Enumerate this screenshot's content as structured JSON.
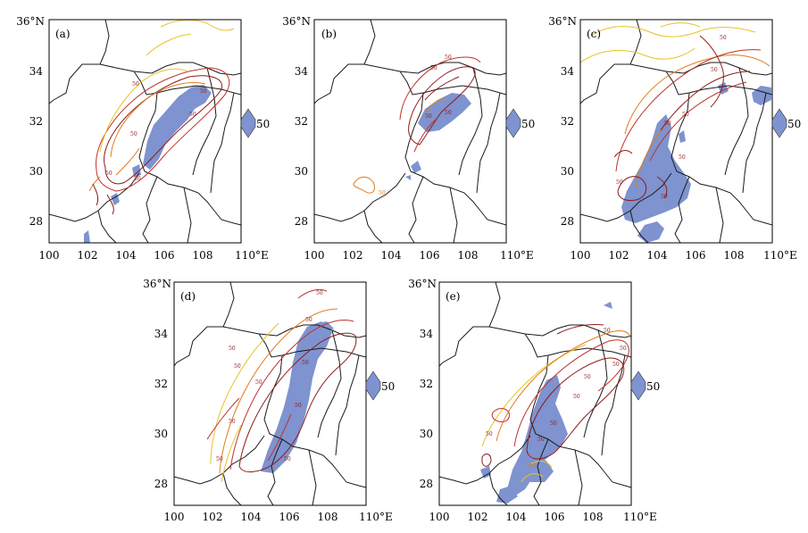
{
  "figure": {
    "panels": [
      {
        "id": "a",
        "label": "(a)"
      },
      {
        "id": "b",
        "label": "(b)"
      },
      {
        "id": "c",
        "label": "(c)"
      },
      {
        "id": "d",
        "label": "(d)"
      },
      {
        "id": "e",
        "label": "(e)"
      }
    ],
    "axes": {
      "lon_ticks": [
        "100",
        "102",
        "104",
        "106",
        "108",
        "110°E"
      ],
      "lat_ticks": [
        "28",
        "30",
        "32",
        "34",
        "36°N"
      ],
      "lon_range": [
        100,
        110
      ],
      "lat_range": [
        27,
        36
      ]
    },
    "legend": {
      "value_label": "50",
      "fill_color": "#7e93cf"
    },
    "contour_label": "50",
    "colors": {
      "shade": "#7e93cf",
      "contour_dark": "#8e1a1a",
      "contour_red": "#c0322a",
      "contour_orange": "#e07b1c",
      "contour_yellow": "#e8c22c",
      "boundary": "#1a1a1a"
    }
  }
}
